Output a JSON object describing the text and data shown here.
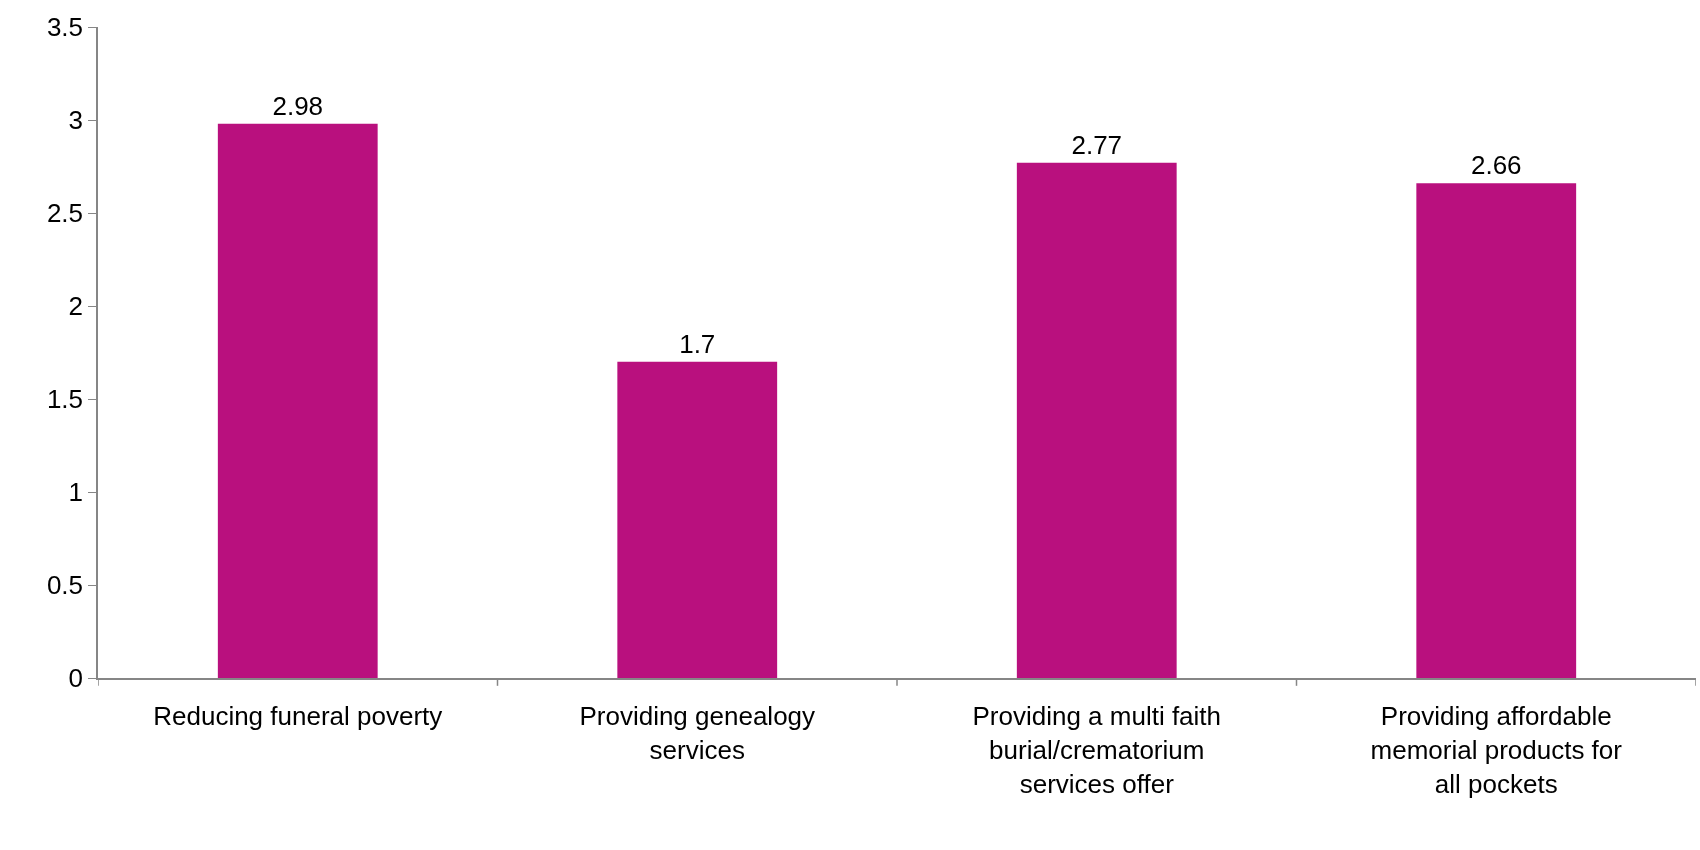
{
  "chart_data": {
    "type": "bar",
    "categories": [
      "Reducing funeral poverty",
      "Providing genealogy services",
      "Providing a multi faith burial/crematorium services offer",
      "Providing affordable memorial products for all pockets"
    ],
    "values": [
      2.98,
      1.7,
      2.77,
      2.66
    ],
    "color": "#b9107e",
    "ylim": [
      0,
      3.5
    ],
    "yticks": [
      0,
      0.5,
      1,
      1.5,
      2,
      2.5,
      3,
      3.5
    ],
    "data_labels": true
  }
}
